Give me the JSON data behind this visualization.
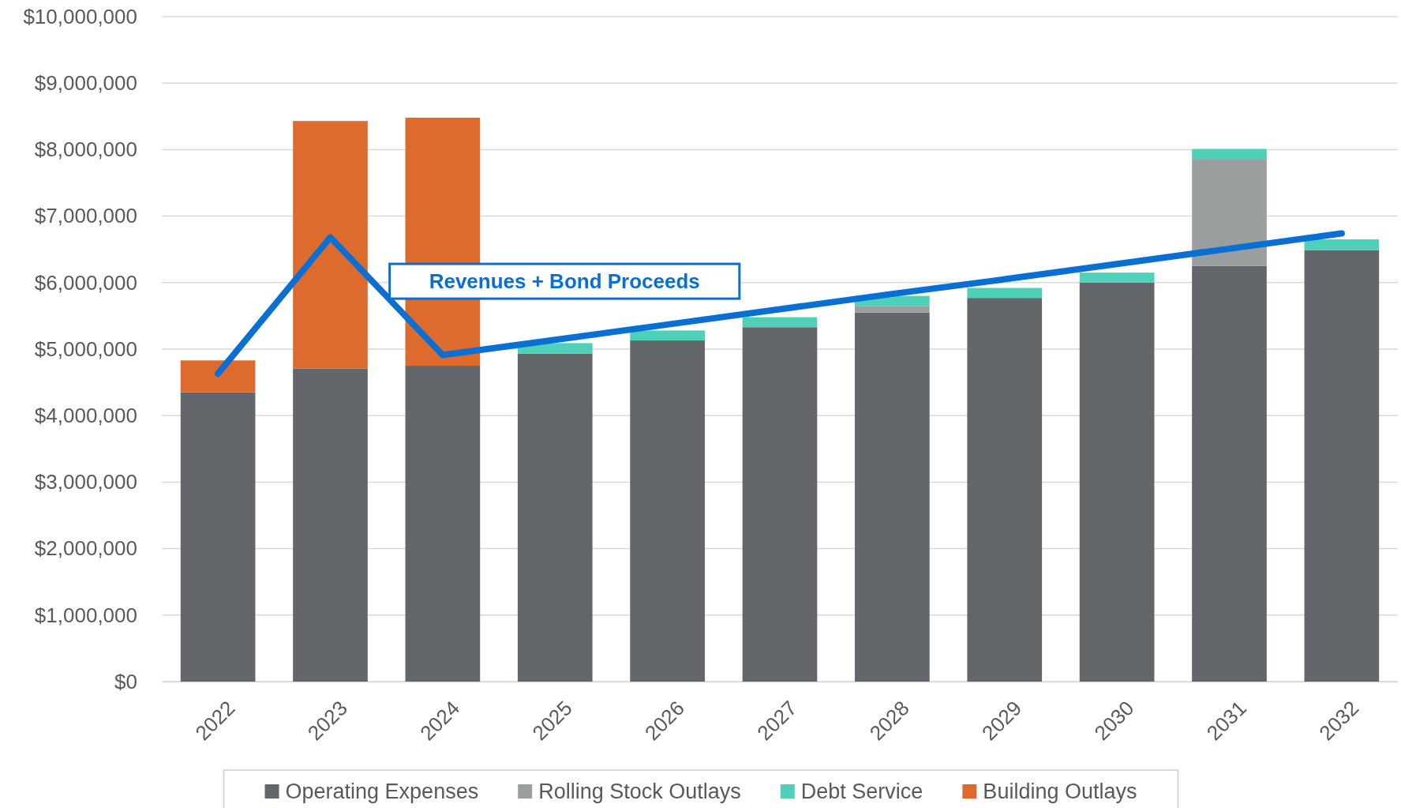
{
  "chart_data": {
    "type": "bar",
    "stacked": true,
    "categories": [
      "2022",
      "2023",
      "2024",
      "2025",
      "2026",
      "2027",
      "2028",
      "2029",
      "2030",
      "2031",
      "2032"
    ],
    "series": [
      {
        "name": "Operating Expenses",
        "color": "#63666a",
        "values": [
          4350000,
          4710000,
          4750000,
          4930000,
          5130000,
          5330000,
          5550000,
          5770000,
          6000000,
          6250000,
          6490000
        ]
      },
      {
        "name": "Rolling Stock Outlays",
        "color": "#9b9e9e",
        "values": [
          null,
          null,
          null,
          null,
          null,
          null,
          100000,
          null,
          null,
          1610000,
          null
        ]
      },
      {
        "name": "Debt Service",
        "color": "#4fd1b9",
        "values": [
          null,
          null,
          null,
          160000,
          150000,
          150000,
          150000,
          150000,
          150000,
          150000,
          160000
        ]
      },
      {
        "name": "Building Outlays",
        "color": "#dd6b2e",
        "values": [
          480000,
          3720000,
          3730000,
          null,
          null,
          null,
          null,
          null,
          null,
          null,
          null
        ]
      },
      {
        "name": "Revenues + Bond Proceeds",
        "type": "line",
        "color": "#0a6fd2",
        "values": [
          4630000,
          6680000,
          4910000,
          5140000,
          5370000,
          5600000,
          5830000,
          6050000,
          6280000,
          6510000,
          6740000
        ]
      }
    ],
    "ylim": [
      0,
      10000000
    ],
    "yticks": [
      {
        "value": 0,
        "label": "$0"
      },
      {
        "value": 1000000,
        "label": "$1,000,000"
      },
      {
        "value": 2000000,
        "label": "$2,000,000"
      },
      {
        "value": 3000000,
        "label": "$3,000,000"
      },
      {
        "value": 4000000,
        "label": "$4,000,000"
      },
      {
        "value": 5000000,
        "label": "$5,000,000"
      },
      {
        "value": 6000000,
        "label": "$6,000,000"
      },
      {
        "value": 7000000,
        "label": "$7,000,000"
      },
      {
        "value": 8000000,
        "label": "$8,000,000"
      },
      {
        "value": 9000000,
        "label": "$9,000,000"
      },
      {
        "value": 10000000,
        "label": "$10,000,000"
      }
    ],
    "grid": "y",
    "legend": "bottom",
    "line_style": "solid",
    "marker": "none"
  }
}
